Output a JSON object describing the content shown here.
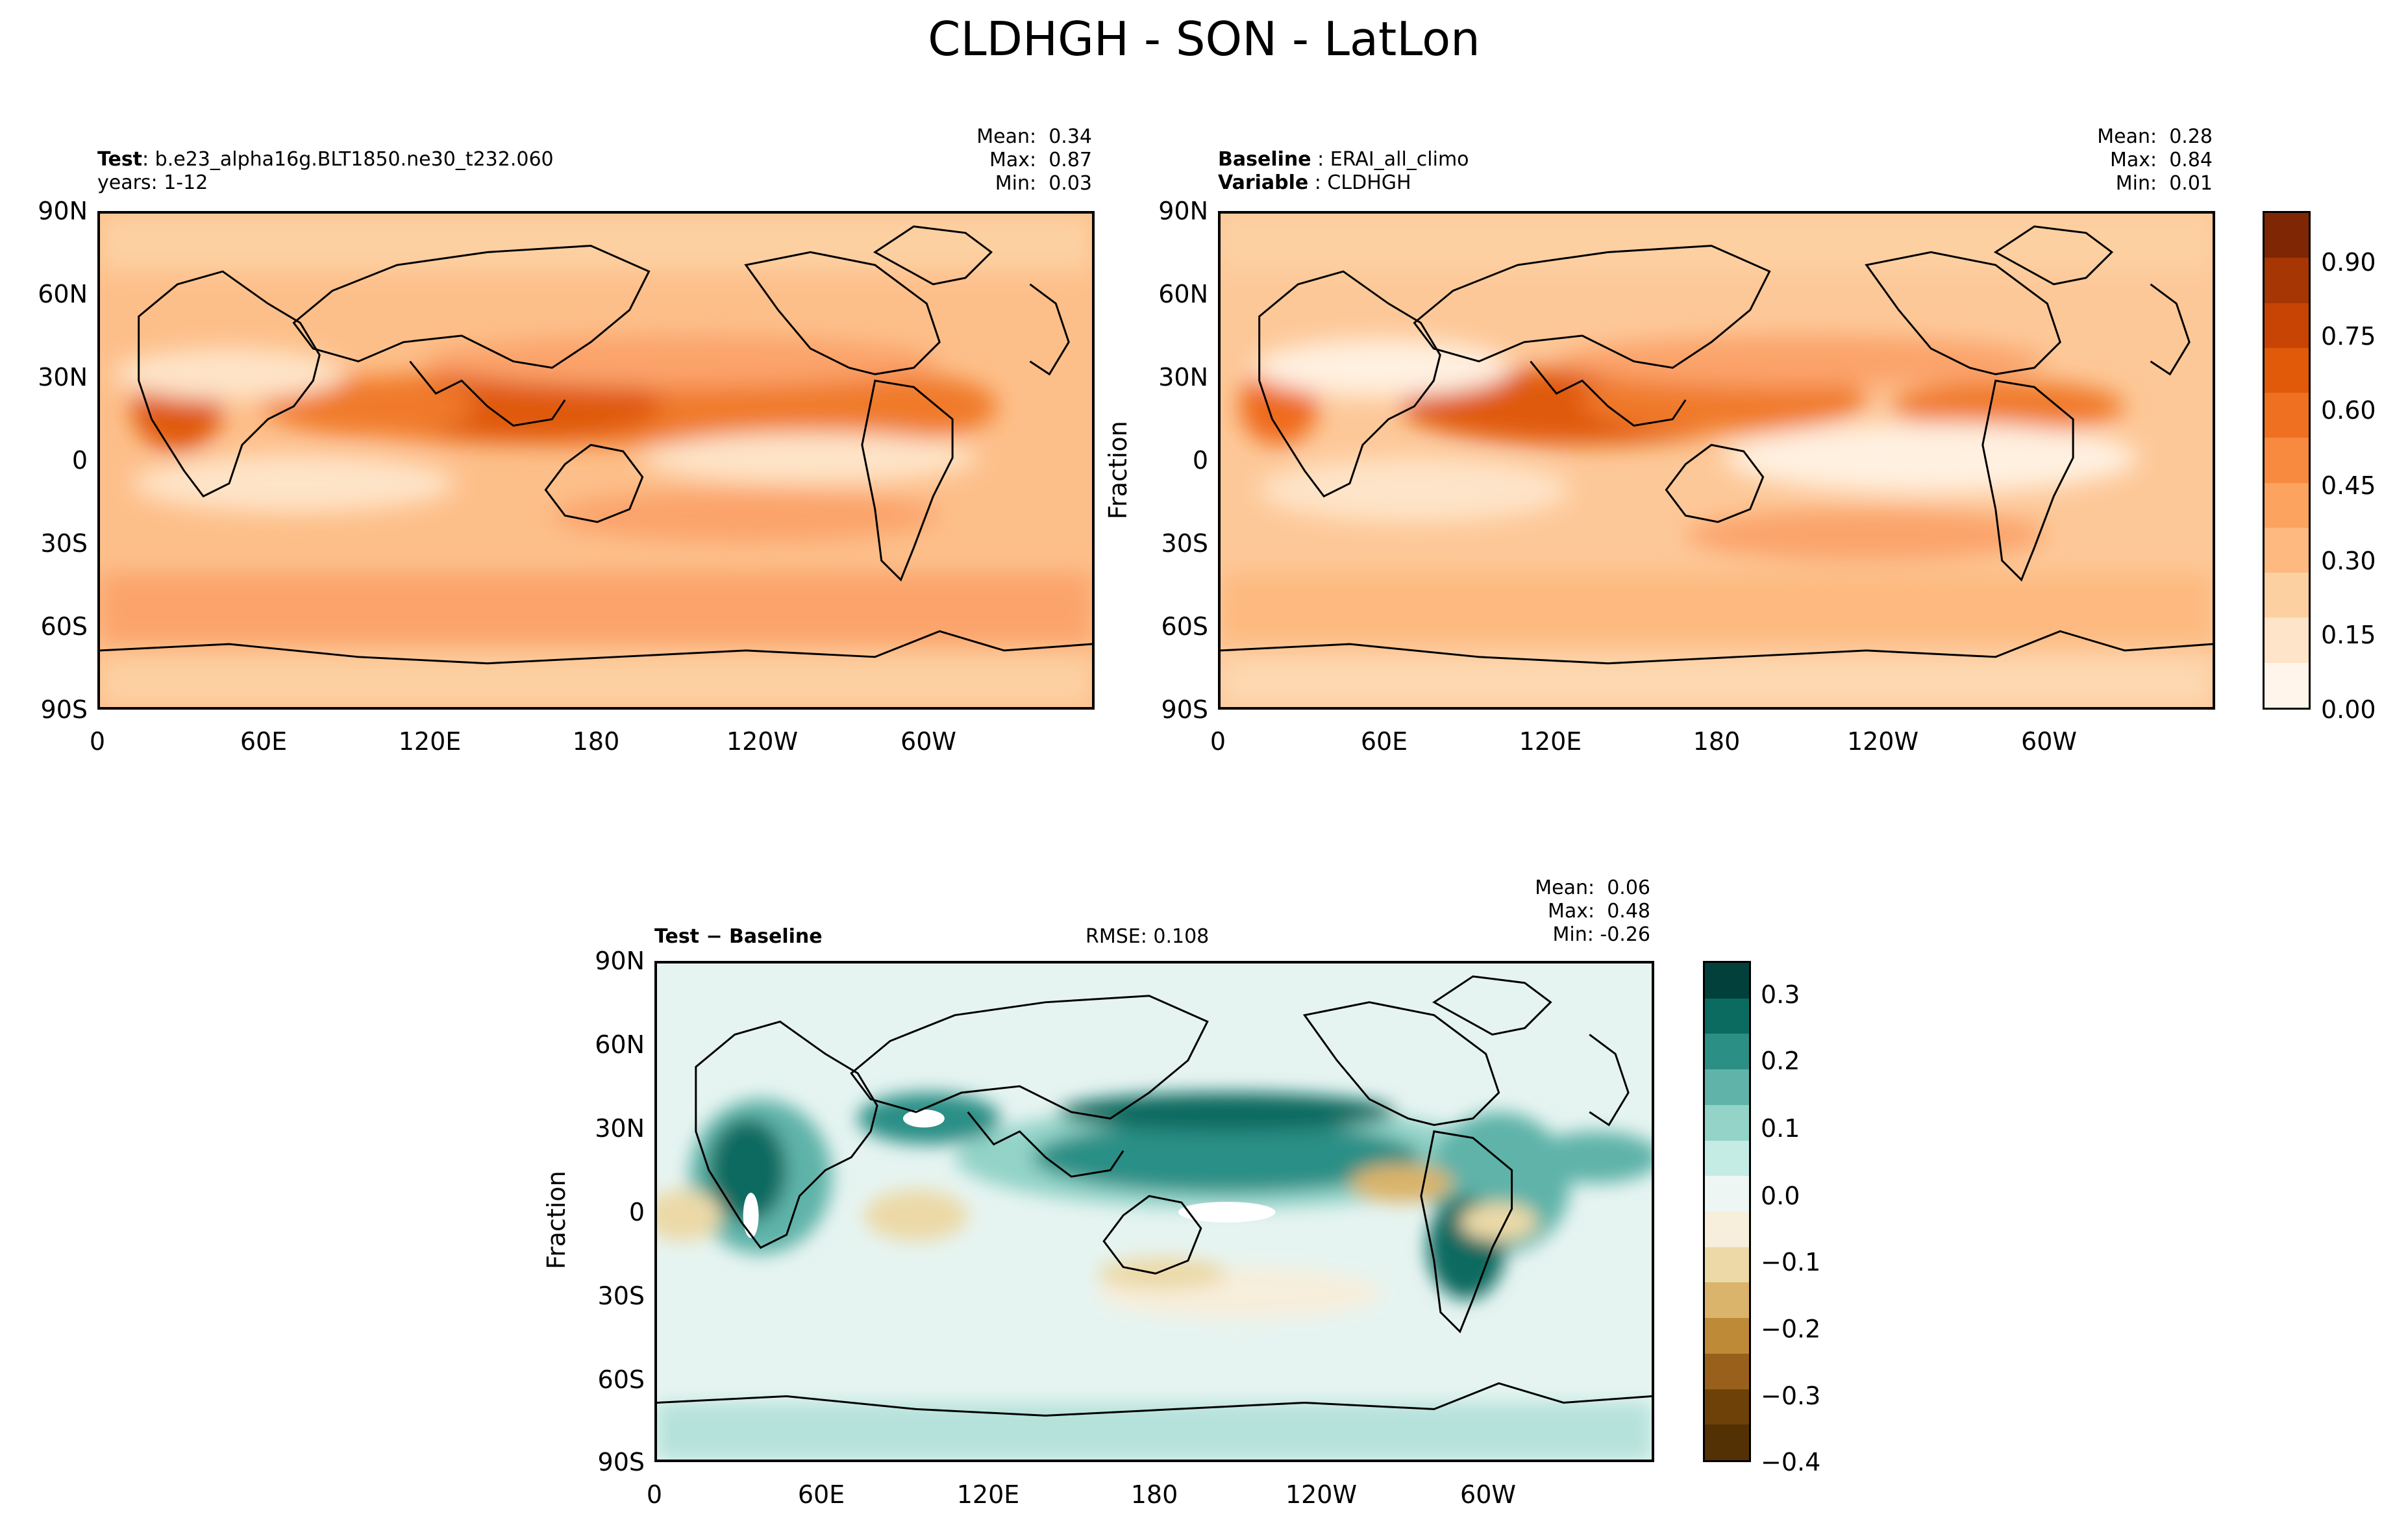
{
  "figure": {
    "title": "CLDHGH - SON - LatLon"
  },
  "panels": {
    "test": {
      "label_bold": "Test",
      "label_text": ": b.e23_alpha16g.BLT1850.ne30_t232.060",
      "line2": "years: 1-12",
      "stats": "Mean:  0.34\nMax:  0.87\nMin:  0.03"
    },
    "baseline": {
      "label_bold": "Baseline",
      "label_text": " : ERAI_all_climo",
      "line2_bold": "Variable",
      "line2_text": " : CLDHGH",
      "stats": "Mean:  0.28\nMax:  0.84\nMin:  0.01",
      "ylabel": "Fraction"
    },
    "diff": {
      "label": "Test − Baseline",
      "rmse": "RMSE: 0.108",
      "stats": "Mean:  0.06\nMax:  0.48\nMin: -0.26",
      "ylabel": "Fraction"
    }
  },
  "axes": {
    "lat_ticks": [
      "90N",
      "60N",
      "30N",
      "0",
      "30S",
      "60S",
      "90S"
    ],
    "lon_ticks": [
      "0",
      "60E",
      "120E",
      "180",
      "120W",
      "60W"
    ]
  },
  "colorbars": {
    "main": {
      "labels": [
        "0.90",
        "0.75",
        "0.60",
        "0.45",
        "0.30",
        "0.15",
        "0.00"
      ],
      "colors": [
        "#7f2704",
        "#a63603",
        "#c74404",
        "#e05a0a",
        "#ef7020",
        "#f78a3e",
        "#fca35f",
        "#fdb97f",
        "#fdd0a2",
        "#fee4c8",
        "#fff5eb"
      ]
    },
    "diff": {
      "labels": [
        "0.3",
        "0.2",
        "0.1",
        "0.0",
        "−0.1",
        "−0.2",
        "−0.3",
        "−0.4"
      ],
      "colors": [
        "#01403b",
        "#0b6b60",
        "#2c8f86",
        "#5fb3a9",
        "#93d3c8",
        "#c4ebe4",
        "#eef6f4",
        "#f7eedb",
        "#ecd9a7",
        "#d9b46a",
        "#bf8a38",
        "#98601a",
        "#6d4108",
        "#543005"
      ]
    }
  }
}
